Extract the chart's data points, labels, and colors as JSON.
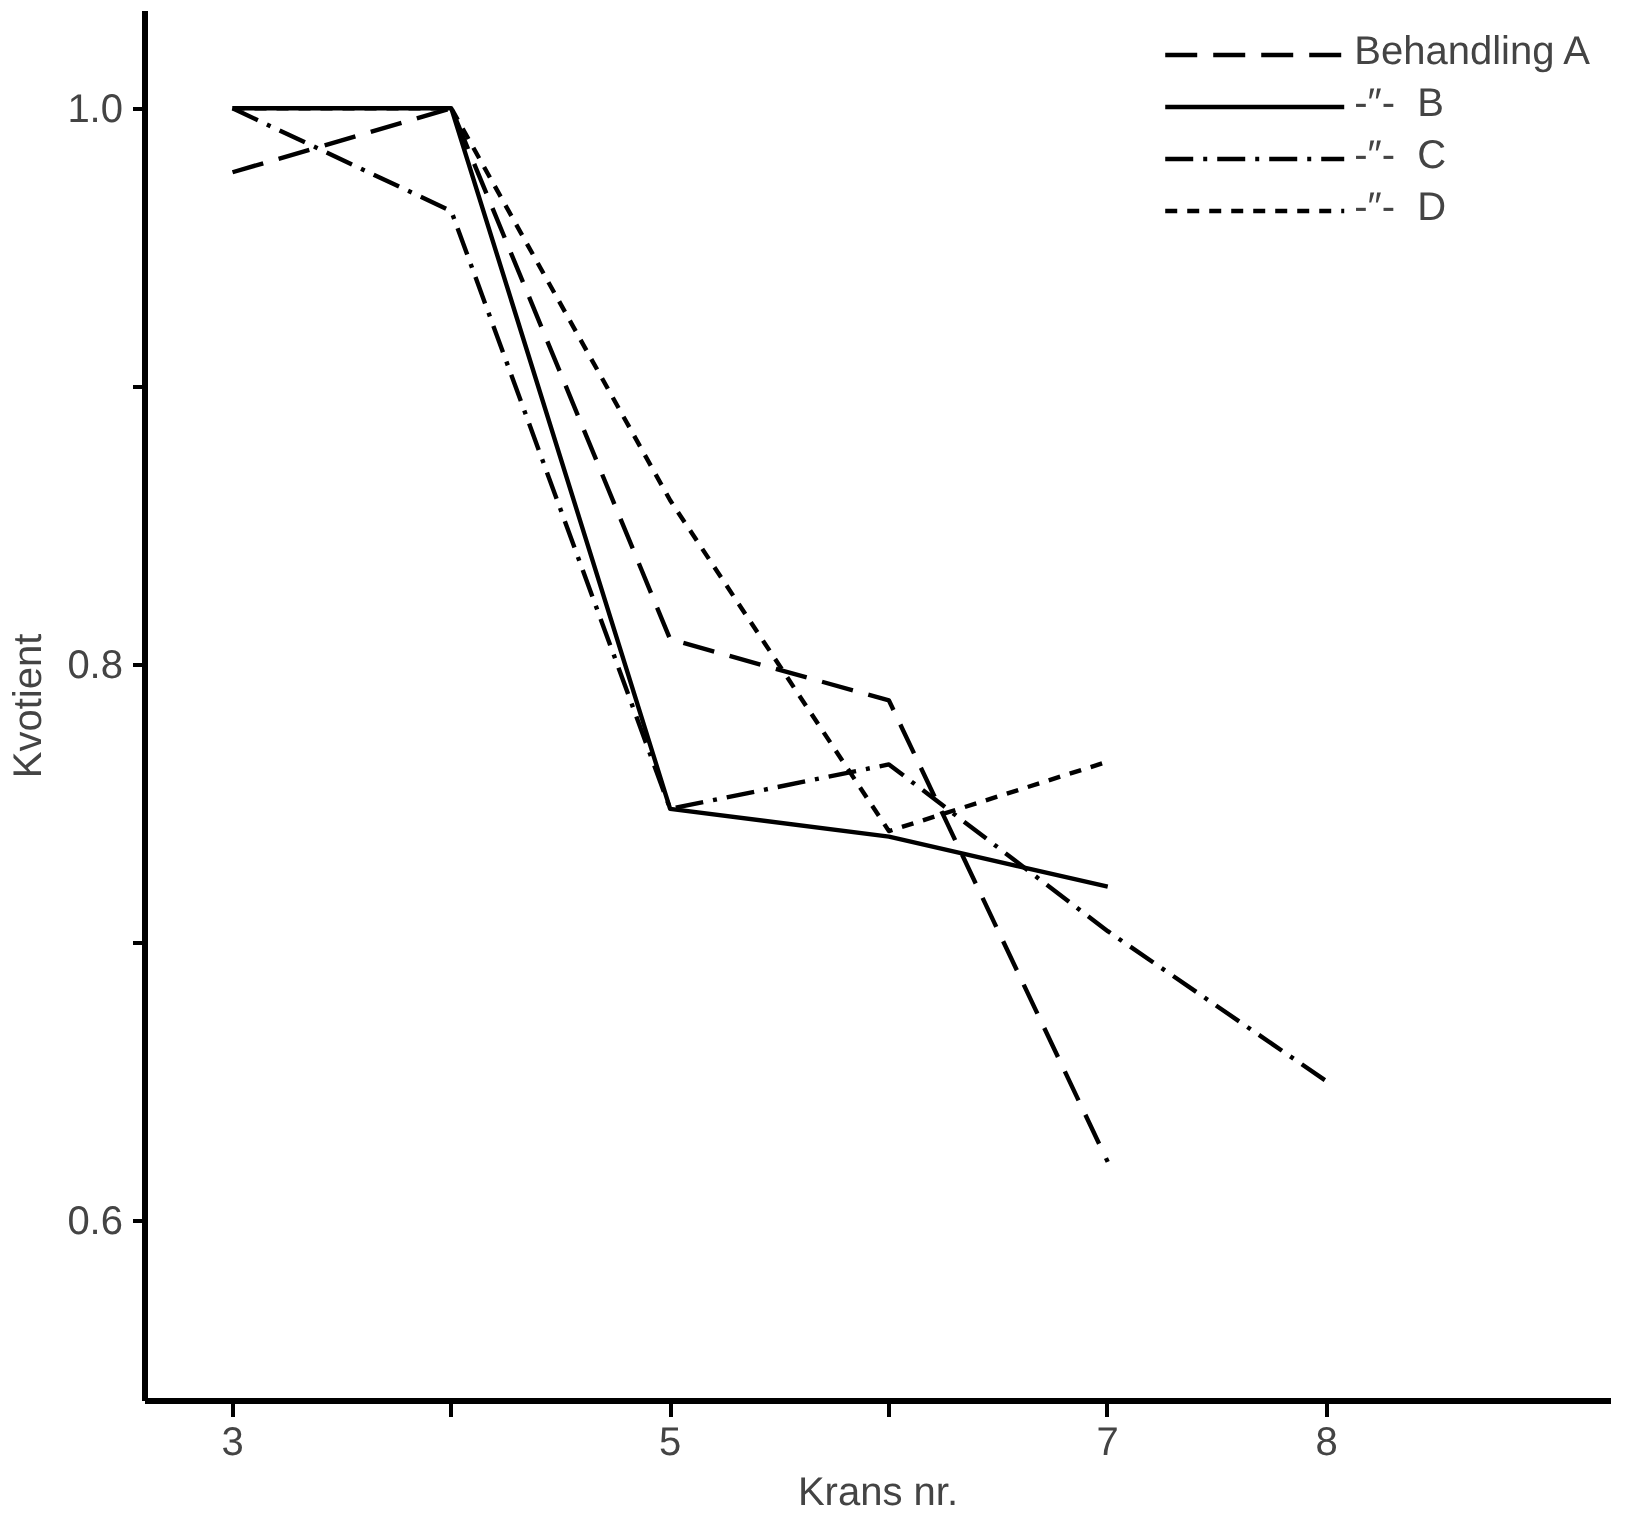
{
  "chart_data": {
    "type": "line",
    "xlabel": "Krans nr.",
    "ylabel": "Kvotient",
    "x": [
      3,
      4,
      5,
      6,
      7,
      8
    ],
    "xlim": [
      2.6,
      9.3
    ],
    "xticks": [
      3,
      {
        "value": 4,
        "label": null
      },
      5,
      {
        "value": 6,
        "label": null
      },
      7,
      8
    ],
    "ylim": [
      0.535,
      1.035
    ],
    "yticks": [
      0.6,
      {
        "value": 0.7,
        "label": null
      },
      0.8,
      {
        "value": 0.9,
        "label": null
      },
      {
        "value": 1.0,
        "label": "1.0"
      }
    ],
    "grid": false,
    "legend": "top right",
    "marker": "none",
    "series": [
      {
        "name": "Behandling A",
        "color": "#000000",
        "line_style": "dashed",
        "values": [
          0.977,
          1.0,
          0.809,
          0.787,
          0.621,
          null
        ]
      },
      {
        "name": "-″-  B",
        "color": "#000000",
        "line_style": "solid",
        "values": [
          1.0,
          1.0,
          0.748,
          0.738,
          0.72,
          null
        ]
      },
      {
        "name": "-″-  C",
        "color": "#000000",
        "line_style": "dashdot",
        "values": [
          1.0,
          0.963,
          0.748,
          0.764,
          0.704,
          0.65
        ]
      },
      {
        "name": "-″-  D",
        "color": "#000000",
        "line_style": "dotted",
        "values": [
          1.0,
          1.0,
          0.859,
          0.74,
          0.765,
          null
        ]
      }
    ]
  }
}
